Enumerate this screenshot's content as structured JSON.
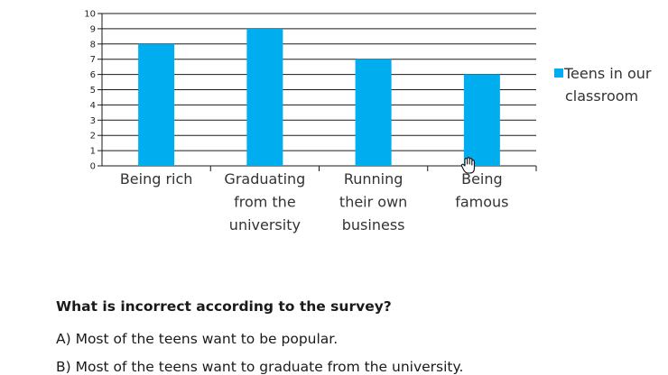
{
  "chart_data": {
    "type": "bar",
    "categories": [
      [
        "Being rich"
      ],
      [
        "Graduating",
        "from the",
        "university"
      ],
      [
        "Running",
        "their own",
        "business"
      ],
      [
        "Being",
        "famous"
      ]
    ],
    "series": [
      {
        "name": "Teens in our classroom",
        "values": [
          8,
          9,
          7,
          6
        ]
      }
    ],
    "legend_lines": [
      "Teens in our",
      "classroom"
    ],
    "ylim": [
      0,
      10
    ],
    "yticks": [
      "0",
      "1",
      "2",
      "3",
      "4",
      "5",
      "6",
      "7",
      "8",
      "9",
      "10"
    ],
    "grid": true,
    "bar_color": "#00aeef",
    "legend_position": "right"
  },
  "quiz": {
    "question": "What is incorrect according to the survey?",
    "options": [
      "A) Most of the teens want to be popular.",
      "B) Most of the teens want to graduate from the university."
    ]
  }
}
